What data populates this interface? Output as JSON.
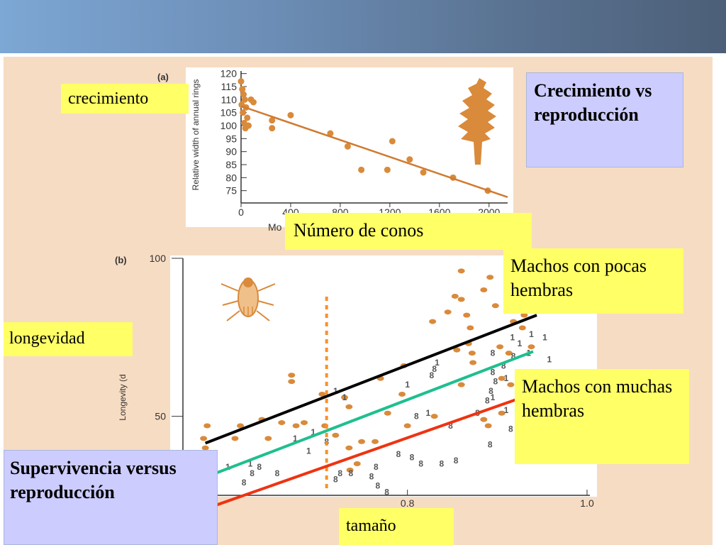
{
  "labels": {
    "crecimiento": "crecimiento",
    "numero_conos": "Número de conos",
    "longevidad": "longevidad",
    "tamano": "tamaño",
    "machos_pocas": "Machos con pocas hembras",
    "machos_muchas": "Machos con muchas hembras",
    "title_top": "Crecimiento vs reproducción",
    "title_bottom": "Supervivencia versus reproducción"
  },
  "colors": {
    "header": "#6d8fb8",
    "panel_bg": "#f6dcc3",
    "dot": "#d98a3a",
    "fit_line_a": "#d07a30",
    "line_pocas": "#000000",
    "line_mid": "#1fbf8f",
    "line_muchas": "#ee3311",
    "vertical_dotted": "#f5922a",
    "yellow_box": "#ffff66",
    "lilac_box": "#ccccff"
  },
  "chart_data": [
    {
      "panel": "(a)",
      "type": "scatter",
      "ylabel": "Relative width of annual rings",
      "xlabel": "Mo",
      "x_ticks": [
        "0",
        "400",
        "800",
        "1200",
        "1600",
        "2000"
      ],
      "y_ticks": [
        "75",
        "80",
        "85",
        "90",
        "95",
        "100",
        "105",
        "110",
        "115",
        "120"
      ],
      "xlim": [
        0,
        2150
      ],
      "ylim": [
        73,
        121
      ],
      "points": [
        {
          "x": 0,
          "y": 117
        },
        {
          "x": 10,
          "y": 114
        },
        {
          "x": 20,
          "y": 112
        },
        {
          "x": 30,
          "y": 110
        },
        {
          "x": 5,
          "y": 108
        },
        {
          "x": 40,
          "y": 107
        },
        {
          "x": 15,
          "y": 105
        },
        {
          "x": 50,
          "y": 103
        },
        {
          "x": 25,
          "y": 101
        },
        {
          "x": 60,
          "y": 100
        },
        {
          "x": 35,
          "y": 99
        },
        {
          "x": 80,
          "y": 110
        },
        {
          "x": 100,
          "y": 109
        },
        {
          "x": 250,
          "y": 102
        },
        {
          "x": 250,
          "y": 99
        },
        {
          "x": 400,
          "y": 104
        },
        {
          "x": 720,
          "y": 97
        },
        {
          "x": 860,
          "y": 92
        },
        {
          "x": 970,
          "y": 83
        },
        {
          "x": 1220,
          "y": 94
        },
        {
          "x": 1180,
          "y": 83
        },
        {
          "x": 1360,
          "y": 87
        },
        {
          "x": 1470,
          "y": 82
        },
        {
          "x": 1710,
          "y": 80
        },
        {
          "x": 1990,
          "y": 75
        }
      ],
      "fit_line": [
        [
          0,
          107.5
        ],
        [
          2150,
          72.5
        ]
      ]
    },
    {
      "panel": "(b)",
      "type": "scatter",
      "ylabel": "Longevity (d",
      "x_ticks": [
        "0.8",
        "1.0"
      ],
      "y_ticks": [
        "50",
        "100"
      ],
      "xlim": [
        0.55,
        1.0
      ],
      "ylim": [
        25,
        100
      ],
      "dots": [
        {
          "x": 0.577,
          "y": 47
        },
        {
          "x": 0.573,
          "y": 43
        },
        {
          "x": 0.575,
          "y": 40
        },
        {
          "x": 0.608,
          "y": 43
        },
        {
          "x": 0.614,
          "y": 47
        },
        {
          "x": 0.638,
          "y": 49
        },
        {
          "x": 0.645,
          "y": 43
        },
        {
          "x": 0.66,
          "y": 48
        },
        {
          "x": 0.676,
          "y": 47
        },
        {
          "x": 0.685,
          "y": 48
        },
        {
          "x": 0.671,
          "y": 63
        },
        {
          "x": 0.671,
          "y": 61
        },
        {
          "x": 0.705,
          "y": 57
        },
        {
          "x": 0.73,
          "y": 56
        },
        {
          "x": 0.735,
          "y": 53
        },
        {
          "x": 0.708,
          "y": 47
        },
        {
          "x": 0.72,
          "y": 44
        },
        {
          "x": 0.735,
          "y": 40
        },
        {
          "x": 0.744,
          "y": 35
        },
        {
          "x": 0.736,
          "y": 33
        },
        {
          "x": 0.749,
          "y": 42
        },
        {
          "x": 0.764,
          "y": 42
        },
        {
          "x": 0.778,
          "y": 51
        },
        {
          "x": 0.796,
          "y": 66
        },
        {
          "x": 0.77,
          "y": 62
        },
        {
          "x": 0.794,
          "y": 57
        },
        {
          "x": 0.8,
          "y": 47
        },
        {
          "x": 0.83,
          "y": 50
        },
        {
          "x": 0.828,
          "y": 80
        },
        {
          "x": 0.845,
          "y": 83
        },
        {
          "x": 0.853,
          "y": 88
        },
        {
          "x": 0.86,
          "y": 87
        },
        {
          "x": 0.866,
          "y": 82
        },
        {
          "x": 0.87,
          "y": 78
        },
        {
          "x": 0.868,
          "y": 73
        },
        {
          "x": 0.855,
          "y": 71
        },
        {
          "x": 0.872,
          "y": 70
        },
        {
          "x": 0.873,
          "y": 67
        },
        {
          "x": 0.885,
          "y": 90
        },
        {
          "x": 0.898,
          "y": 85
        },
        {
          "x": 0.903,
          "y": 72
        },
        {
          "x": 0.913,
          "y": 70
        },
        {
          "x": 0.905,
          "y": 62
        },
        {
          "x": 0.915,
          "y": 60
        },
        {
          "x": 0.918,
          "y": 80
        },
        {
          "x": 0.928,
          "y": 78
        },
        {
          "x": 0.938,
          "y": 72
        },
        {
          "x": 0.94,
          "y": 60
        },
        {
          "x": 0.885,
          "y": 49
        },
        {
          "x": 0.89,
          "y": 47
        },
        {
          "x": 0.905,
          "y": 51
        },
        {
          "x": 0.86,
          "y": 96
        },
        {
          "x": 0.892,
          "y": 94
        },
        {
          "x": 0.937,
          "y": 92
        },
        {
          "x": 0.93,
          "y": 82
        },
        {
          "x": 0.86,
          "y": 60
        }
      ],
      "markers": [
        {
          "label": "8",
          "x": 0.58,
          "y": 38
        },
        {
          "label": "1",
          "x": 0.6,
          "y": 34
        },
        {
          "label": "1",
          "x": 0.625,
          "y": 35
        },
        {
          "label": "8",
          "x": 0.564,
          "y": 33
        },
        {
          "label": "8",
          "x": 0.57,
          "y": 35
        },
        {
          "label": "8",
          "x": 0.618,
          "y": 29
        },
        {
          "label": "8",
          "x": 0.635,
          "y": 34
        },
        {
          "label": "8",
          "x": 0.627,
          "y": 32
        },
        {
          "label": "8",
          "x": 0.655,
          "y": 32
        },
        {
          "label": "1",
          "x": 0.675,
          "y": 43
        },
        {
          "label": "1",
          "x": 0.69,
          "y": 39
        },
        {
          "label": "1",
          "x": 0.695,
          "y": 45
        },
        {
          "label": "8",
          "x": 0.71,
          "y": 42
        },
        {
          "label": "8",
          "x": 0.72,
          "y": 30
        },
        {
          "label": "8",
          "x": 0.725,
          "y": 32
        },
        {
          "label": "8",
          "x": 0.737,
          "y": 32
        },
        {
          "label": "8",
          "x": 0.76,
          "y": 31
        },
        {
          "label": "8",
          "x": 0.767,
          "y": 28
        },
        {
          "label": "8",
          "x": 0.777,
          "y": 26
        },
        {
          "label": "8",
          "x": 0.765,
          "y": 34
        },
        {
          "label": "8",
          "x": 0.79,
          "y": 38
        },
        {
          "label": "8",
          "x": 0.805,
          "y": 37
        },
        {
          "label": "8",
          "x": 0.815,
          "y": 35
        },
        {
          "label": "8",
          "x": 0.838,
          "y": 35
        },
        {
          "label": "8",
          "x": 0.854,
          "y": 36
        },
        {
          "label": "1",
          "x": 0.73,
          "y": 56
        },
        {
          "label": "1",
          "x": 0.72,
          "y": 58
        },
        {
          "label": "1",
          "x": 0.8,
          "y": 60
        },
        {
          "label": "8",
          "x": 0.81,
          "y": 50
        },
        {
          "label": "1",
          "x": 0.823,
          "y": 51
        },
        {
          "label": "8",
          "x": 0.848,
          "y": 47
        },
        {
          "label": "8",
          "x": 0.827,
          "y": 63
        },
        {
          "label": "8",
          "x": 0.83,
          "y": 65
        },
        {
          "label": "1",
          "x": 0.833,
          "y": 67
        },
        {
          "label": "8",
          "x": 0.878,
          "y": 51
        },
        {
          "label": "8",
          "x": 0.889,
          "y": 55
        },
        {
          "label": "1",
          "x": 0.895,
          "y": 56
        },
        {
          "label": "8",
          "x": 0.893,
          "y": 58
        },
        {
          "label": "8",
          "x": 0.898,
          "y": 61
        },
        {
          "label": "8",
          "x": 0.895,
          "y": 64
        },
        {
          "label": "1",
          "x": 0.91,
          "y": 52
        },
        {
          "label": "1",
          "x": 0.922,
          "y": 48
        },
        {
          "label": "1",
          "x": 0.935,
          "y": 70
        },
        {
          "label": "1",
          "x": 0.925,
          "y": 73
        },
        {
          "label": "1",
          "x": 0.917,
          "y": 75
        },
        {
          "label": "1",
          "x": 0.938,
          "y": 76
        },
        {
          "label": "1",
          "x": 0.953,
          "y": 75
        },
        {
          "label": "1",
          "x": 0.958,
          "y": 68
        },
        {
          "label": "8",
          "x": 0.918,
          "y": 69
        },
        {
          "label": "8",
          "x": 0.895,
          "y": 70
        },
        {
          "label": "8",
          "x": 0.907,
          "y": 66
        },
        {
          "label": "8",
          "x": 0.948,
          "y": 50
        },
        {
          "label": "8",
          "x": 0.915,
          "y": 46
        },
        {
          "label": "1",
          "x": 0.91,
          "y": 62
        },
        {
          "label": "8",
          "x": 0.892,
          "y": 41
        },
        {
          "label": "1",
          "x": 0.945,
          "y": 47
        }
      ],
      "lines": [
        {
          "name": "Machos con pocas hembras",
          "from": [
            0.575,
            41.5
          ],
          "to": [
            0.944,
            82
          ]
        },
        {
          "name": "",
          "from": [
            0.582,
            31.5
          ],
          "to": [
            0.94,
            70.5
          ]
        },
        {
          "name": "Machos con muchas hembras",
          "from": [
            0.578,
            21
          ],
          "to": [
            0.958,
            59
          ]
        }
      ],
      "vertical_dotted_x": 0.71
    }
  ]
}
